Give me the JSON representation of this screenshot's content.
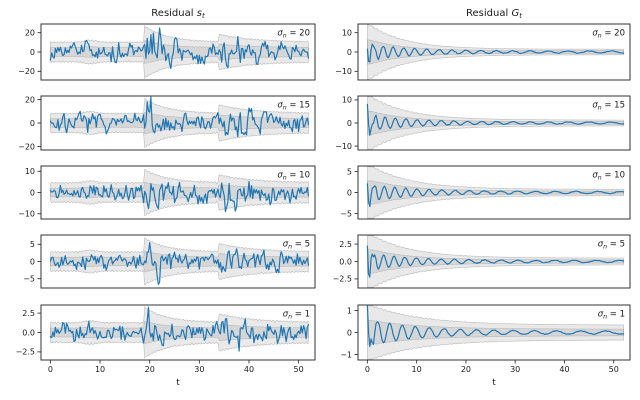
{
  "figure": {
    "background": "#ffffff",
    "text_color": "#1a1a1a",
    "spine_color": "#333333"
  },
  "chart_data": [
    {
      "type": "line",
      "column": "left",
      "title": {
        "prefix": "Residual ",
        "var": "s",
        "sub": "t"
      },
      "xlabel": "t",
      "x": {
        "ticks": [
          {
            "v": 0,
            "t": "0"
          },
          {
            "v": 10,
            "t": "10"
          },
          {
            "v": 20,
            "t": "20"
          },
          {
            "v": 30,
            "t": "30"
          },
          {
            "v": 40,
            "t": "40"
          },
          {
            "v": 50,
            "t": "50"
          }
        ],
        "range": [
          -1.9,
          53.3
        ],
        "data_range": [
          0,
          52
        ]
      },
      "style": {
        "line_color": "#1f77b4",
        "band_fill": "rgba(125,125,125,0.17)",
        "band_edge": "rgba(120,120,120,0.45)"
      },
      "panels": [
        {
          "label": {
            "sym": "σ",
            "sub": "n",
            "eq": " = ",
            "value": "20"
          },
          "ylim": [
            -29,
            29
          ],
          "yticks": [
            {
              "v": 20,
              "t": "20"
            },
            {
              "v": 0,
              "t": "0"
            },
            {
              "v": -20,
              "t": "−20"
            }
          ],
          "seed": 3,
          "line": {
            "base": 0.27,
            "bursts": [
              {
                "t0": 19.5,
                "amp": 0.55,
                "tau": 3.0
              },
              {
                "t0": 34.5,
                "amp": 0.3,
                "tau": 5.0
              }
            ]
          },
          "env": {
            "base": 0.3,
            "tex": 0.07,
            "bump": {
              "t0": 8,
              "amp": 0.07,
              "w": 1.2
            },
            "flares": [
              {
                "t0": 19,
                "amp": 0.58,
                "tau": 4.5
              },
              {
                "t0": 34,
                "amp": 0.26,
                "tau": 7.0
              }
            ],
            "inner": 0.45
          }
        },
        {
          "label": {
            "sym": "σ",
            "sub": "n",
            "eq": " = ",
            "value": "15"
          },
          "ylim": [
            -23,
            23
          ],
          "yticks": [
            {
              "v": 20,
              "t": "20"
            },
            {
              "v": 0,
              "t": "0"
            },
            {
              "v": -20,
              "t": "−20"
            }
          ],
          "seed": 7,
          "line": {
            "base": 0.27,
            "bursts": [
              {
                "t0": 19.5,
                "amp": 0.55,
                "tau": 3.0
              },
              {
                "t0": 34.5,
                "amp": 0.32,
                "tau": 5.0
              }
            ]
          },
          "env": {
            "base": 0.3,
            "tex": 0.07,
            "bump": {
              "t0": 8,
              "amp": 0.07,
              "w": 1.2
            },
            "flares": [
              {
                "t0": 19,
                "amp": 0.55,
                "tau": 4.5
              },
              {
                "t0": 34,
                "amp": 0.3,
                "tau": 7.0
              }
            ],
            "inner": 0.45
          }
        },
        {
          "label": {
            "sym": "σ",
            "sub": "n",
            "eq": " = ",
            "value": "10"
          },
          "ylim": [
            -12.5,
            12.5
          ],
          "yticks": [
            {
              "v": 10,
              "t": "10"
            },
            {
              "v": 0,
              "t": "0"
            },
            {
              "v": -10,
              "t": "−10"
            }
          ],
          "seed": 11,
          "line": {
            "base": 0.27,
            "bursts": [
              {
                "t0": 19.5,
                "amp": 0.55,
                "tau": 3.0
              },
              {
                "t0": 34.5,
                "amp": 0.3,
                "tau": 5.0
              }
            ]
          },
          "env": {
            "base": 0.3,
            "tex": 0.09,
            "bump": {
              "t0": 8,
              "amp": 0.07,
              "w": 1.2
            },
            "flares": [
              {
                "t0": 19,
                "amp": 0.5,
                "tau": 4.5
              },
              {
                "t0": 34,
                "amp": 0.28,
                "tau": 7.0
              }
            ],
            "inner": 0.45
          }
        },
        {
          "label": {
            "sym": "σ",
            "sub": "n",
            "eq": " = ",
            "value": "5"
          },
          "ylim": [
            -7.7,
            7.7
          ],
          "yticks": [
            {
              "v": 5,
              "t": "5"
            },
            {
              "v": 0,
              "t": "0"
            },
            {
              "v": -5,
              "t": "−5"
            }
          ],
          "seed": 19,
          "line": {
            "base": 0.26,
            "bursts": [
              {
                "t0": 19.5,
                "amp": 0.6,
                "tau": 3.0
              },
              {
                "t0": 34.5,
                "amp": 0.35,
                "tau": 5.0
              }
            ]
          },
          "env": {
            "base": 0.3,
            "tex": 0.08,
            "bump": {
              "t0": 8,
              "amp": 0.07,
              "w": 1.2
            },
            "flares": [
              {
                "t0": 19,
                "amp": 0.52,
                "tau": 4.5
              },
              {
                "t0": 34,
                "amp": 0.3,
                "tau": 7.0
              }
            ],
            "inner": 0.45
          }
        },
        {
          "label": {
            "sym": "σ",
            "sub": "n",
            "eq": " = ",
            "value": "1"
          },
          "ylim": [
            -3.55,
            3.55
          ],
          "yticks": [
            {
              "v": 2.5,
              "t": "2.5"
            },
            {
              "v": 0,
              "t": "0.0"
            },
            {
              "v": -2.5,
              "t": "−2.5"
            }
          ],
          "seed": 23,
          "line": {
            "base": 0.26,
            "bursts": [
              {
                "t0": 19.5,
                "amp": 0.55,
                "tau": 3.0
              },
              {
                "t0": 34.5,
                "amp": 0.32,
                "tau": 5.0
              }
            ]
          },
          "env": {
            "base": 0.3,
            "tex": 0.08,
            "bump": {
              "t0": 8,
              "amp": 0.07,
              "w": 1.2
            },
            "flares": [
              {
                "t0": 19,
                "amp": 0.55,
                "tau": 4.5
              },
              {
                "t0": 34,
                "amp": 0.3,
                "tau": 7.0
              }
            ],
            "inner": 0.45
          }
        }
      ]
    },
    {
      "type": "line",
      "column": "right",
      "title": {
        "prefix": "Residual ",
        "var": "G",
        "sub": "t"
      },
      "xlabel": "t",
      "x": {
        "ticks": [
          {
            "v": 0,
            "t": "0"
          },
          {
            "v": 10,
            "t": "10"
          },
          {
            "v": 20,
            "t": "20"
          },
          {
            "v": 30,
            "t": "30"
          },
          {
            "v": 40,
            "t": "40"
          },
          {
            "v": 50,
            "t": "50"
          }
        ],
        "range": [
          -1.9,
          53.3
        ],
        "data_range": [
          0,
          52
        ]
      },
      "style": {
        "line_color": "#1f77b4",
        "band_fill": "rgba(125,125,125,0.17)",
        "band_edge": "rgba(120,120,120,0.45)"
      },
      "panels": [
        {
          "label": {
            "sym": "σ",
            "sub": "n",
            "eq": " = ",
            "value": "20"
          },
          "ylim": [
            -14.5,
            14.5
          ],
          "yticks": [
            {
              "v": 10,
              "t": "10"
            },
            {
              "v": 0,
              "t": "0"
            },
            {
              "v": -10,
              "t": "−10"
            }
          ],
          "seed": 5,
          "line": {
            "a0": 0.26,
            "tau": 9,
            "floor": 0.035,
            "period": 1.85,
            "spike": {
              "amp": 0.28,
              "tau": 1.0,
              "period": 0.9
            }
          },
          "env": {
            "a0": 0.88,
            "tau": 7.0,
            "floor": 0.1,
            "tex": 0.08,
            "inner": 0.45
          }
        },
        {
          "label": {
            "sym": "σ",
            "sub": "n",
            "eq": " = ",
            "value": "15"
          },
          "ylim": [
            -11.7,
            11.7
          ],
          "yticks": [
            {
              "v": 10,
              "t": "10"
            },
            {
              "v": 0,
              "t": "0"
            },
            {
              "v": -10,
              "t": "−10"
            }
          ],
          "seed": 9,
          "line": {
            "a0": 0.28,
            "tau": 9,
            "floor": 0.035,
            "period": 1.85,
            "spike": {
              "amp": 0.45,
              "tau": 0.8,
              "period": 0.9
            }
          },
          "env": {
            "a0": 0.9,
            "tau": 7.5,
            "floor": 0.11,
            "tex": 0.08,
            "inner": 0.45
          }
        },
        {
          "label": {
            "sym": "σ",
            "sub": "n",
            "eq": " = ",
            "value": "10"
          },
          "ylim": [
            -6.3,
            6.3
          ],
          "yticks": [
            {
              "v": 5,
              "t": "5"
            },
            {
              "v": 0,
              "t": "0"
            },
            {
              "v": -5,
              "t": "−5"
            }
          ],
          "seed": 13,
          "line": {
            "a0": 0.3,
            "tau": 9,
            "floor": 0.04,
            "period": 1.9,
            "spike": {
              "amp": 0.4,
              "tau": 0.8,
              "period": 0.9
            }
          },
          "env": {
            "a0": 0.92,
            "tau": 8.0,
            "floor": 0.12,
            "tex": 0.08,
            "inner": 0.45
          }
        },
        {
          "label": {
            "sym": "σ",
            "sub": "n",
            "eq": " = ",
            "value": "5"
          },
          "ylim": [
            -3.8,
            3.8
          ],
          "yticks": [
            {
              "v": 2.5,
              "t": "2.5"
            },
            {
              "v": 0,
              "t": "0.0"
            },
            {
              "v": -2.5,
              "t": "−2.5"
            }
          ],
          "seed": 17,
          "line": {
            "a0": 0.3,
            "tau": 9,
            "floor": 0.04,
            "period": 1.9,
            "spike": {
              "amp": 0.75,
              "tau": 0.7,
              "period": 0.85
            }
          },
          "env": {
            "a0": 0.92,
            "tau": 8.0,
            "floor": 0.13,
            "tex": 0.08,
            "inner": 0.45
          }
        },
        {
          "label": {
            "sym": "σ",
            "sub": "n",
            "eq": " = ",
            "value": "1"
          },
          "ylim": [
            -1.25,
            1.25
          ],
          "yticks": [
            {
              "v": 1,
              "t": "1"
            },
            {
              "v": 0,
              "t": "0"
            },
            {
              "v": -1,
              "t": "−1"
            }
          ],
          "seed": 29,
          "line": {
            "a0": 0.45,
            "tau": 10,
            "floor": 0.05,
            "period": 2.2,
            "spike": {
              "amp": 0.75,
              "tau": 0.7,
              "period": 0.85
            }
          },
          "env": {
            "a0": 0.72,
            "tau": 10.0,
            "floor": 0.27,
            "tex": 0.08,
            "inner": 0.45
          }
        }
      ]
    }
  ]
}
